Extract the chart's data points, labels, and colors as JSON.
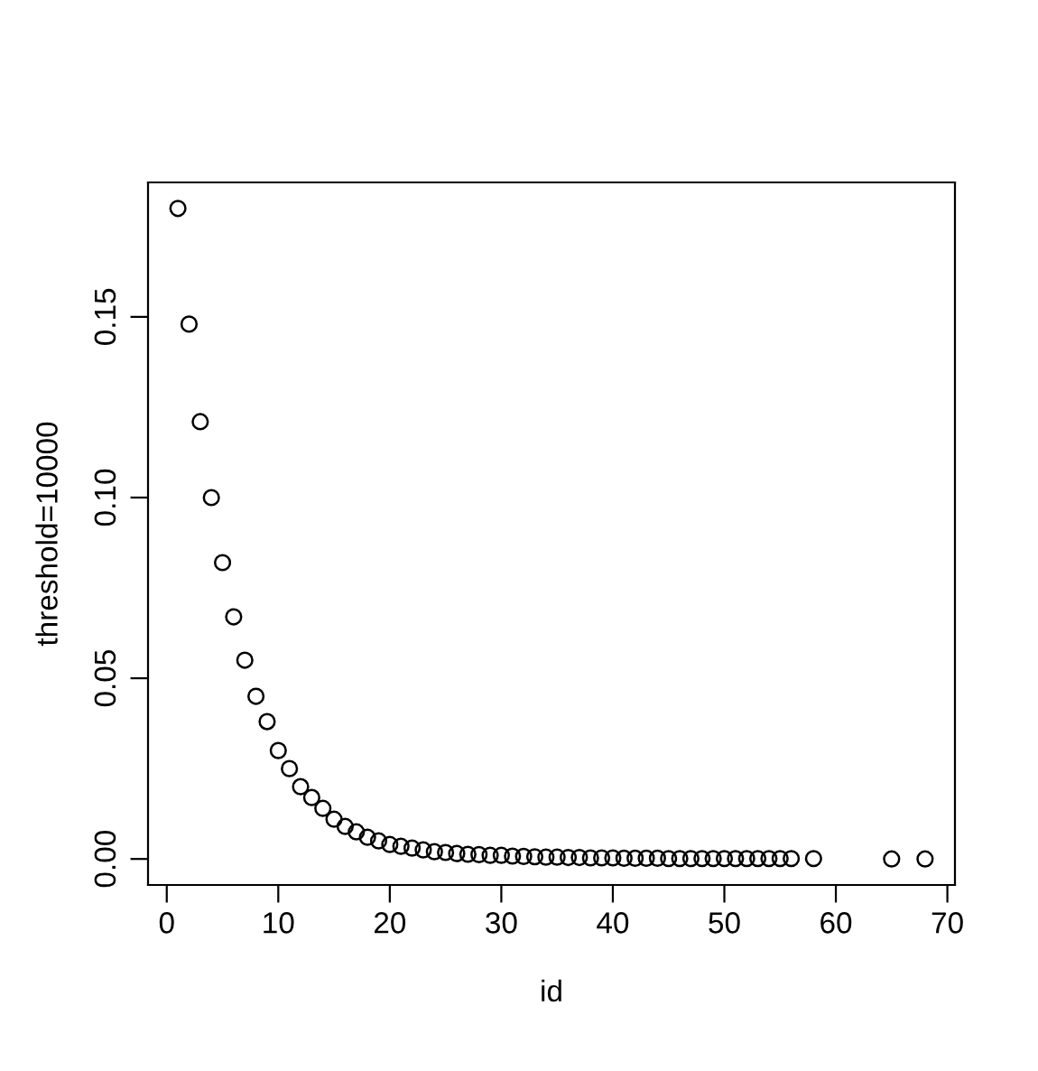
{
  "chart_data": {
    "type": "scatter",
    "xlabel": "id",
    "ylabel": "threshold=10000",
    "x": [
      1,
      2,
      3,
      4,
      5,
      6,
      7,
      8,
      9,
      10,
      11,
      12,
      13,
      14,
      15,
      16,
      17,
      18,
      19,
      20,
      21,
      22,
      23,
      24,
      25,
      26,
      27,
      28,
      29,
      30,
      31,
      32,
      33,
      34,
      35,
      36,
      37,
      38,
      39,
      40,
      41,
      42,
      43,
      44,
      45,
      46,
      47,
      48,
      49,
      50,
      51,
      52,
      53,
      54,
      55,
      56,
      58,
      65,
      68
    ],
    "values": [
      0.18,
      0.148,
      0.121,
      0.1,
      0.082,
      0.067,
      0.055,
      0.045,
      0.038,
      0.03,
      0.025,
      0.02,
      0.017,
      0.014,
      0.011,
      0.009,
      0.0075,
      0.006,
      0.005,
      0.004,
      0.0035,
      0.003,
      0.0025,
      0.002,
      0.0018,
      0.0015,
      0.0013,
      0.0012,
      0.001,
      0.001,
      0.0008,
      0.0007,
      0.0006,
      0.0005,
      0.0005,
      0.0004,
      0.0004,
      0.0003,
      0.0003,
      0.0003,
      0.0002,
      0.0002,
      0.0002,
      0.0002,
      0.0001,
      0.0001,
      0.0001,
      0.0001,
      0.0001,
      0.0001,
      0.0001,
      0.0001,
      0.0001,
      0.0001,
      0.0001,
      0.0001,
      0.0001,
      0.0,
      0.0
    ],
    "color": "#000000",
    "marker": "circle",
    "xlim": [
      -1.68,
      70.68
    ],
    "ylim": [
      -0.0072,
      0.1872
    ],
    "xticks": [
      0,
      10,
      20,
      30,
      40,
      50,
      60,
      70
    ],
    "yticks": [
      {
        "value": 0,
        "label": "0.00"
      },
      {
        "value": 0.05,
        "label": "0.05"
      },
      {
        "value": 0.1,
        "label": "0.10"
      },
      {
        "value": 0.15,
        "label": "0.15"
      }
    ],
    "grid": false
  }
}
